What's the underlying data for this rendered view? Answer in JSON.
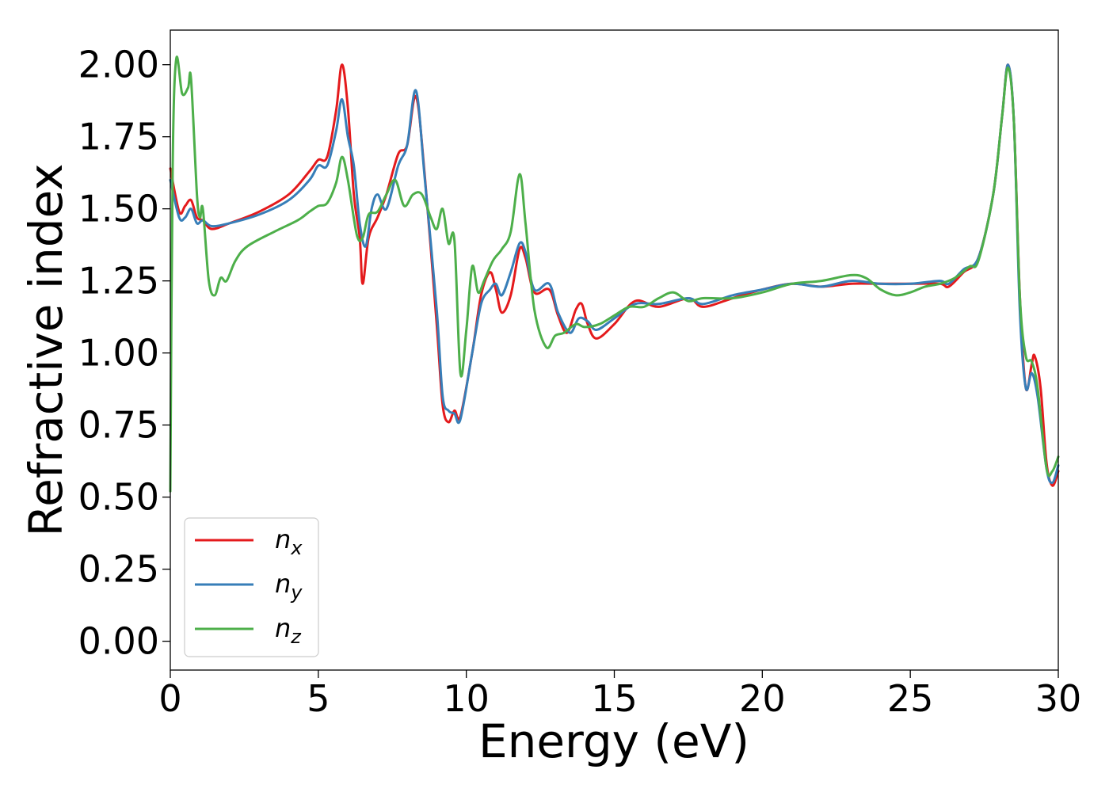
{
  "chart_data": {
    "type": "line",
    "title": "",
    "xlabel": "Energy (eV)",
    "ylabel": "Refractive index",
    "xlim": [
      0,
      30
    ],
    "ylim": [
      -0.1,
      2.12
    ],
    "xticks": [
      0,
      5,
      10,
      15,
      20,
      25,
      30
    ],
    "yticks": [
      0.0,
      0.25,
      0.5,
      0.75,
      1.0,
      1.25,
      1.5,
      1.75,
      2.0
    ],
    "xtick_labels": [
      "0",
      "5",
      "10",
      "15",
      "20",
      "25",
      "30"
    ],
    "ytick_labels": [
      "0.00",
      "0.25",
      "0.50",
      "0.75",
      "1.00",
      "1.25",
      "1.50",
      "1.75",
      "2.00"
    ],
    "grid": false,
    "legend_position": "lower-left",
    "series": [
      {
        "name": "n_x",
        "label_base": "n",
        "label_sub": "x",
        "color": "#e41a1c",
        "points": [
          [
            0,
            1.64
          ],
          [
            0.3,
            1.49
          ],
          [
            0.5,
            1.51
          ],
          [
            0.7,
            1.53
          ],
          [
            0.9,
            1.47
          ],
          [
            1.1,
            1.46
          ],
          [
            1.4,
            1.43
          ],
          [
            2,
            1.45
          ],
          [
            3,
            1.49
          ],
          [
            4,
            1.55
          ],
          [
            4.7,
            1.63
          ],
          [
            5.0,
            1.67
          ],
          [
            5.3,
            1.68
          ],
          [
            5.6,
            1.84
          ],
          [
            5.8,
            2.0
          ],
          [
            6.0,
            1.85
          ],
          [
            6.2,
            1.55
          ],
          [
            6.4,
            1.4
          ],
          [
            6.5,
            1.24
          ],
          [
            6.7,
            1.4
          ],
          [
            7.0,
            1.47
          ],
          [
            7.3,
            1.55
          ],
          [
            7.7,
            1.69
          ],
          [
            8.0,
            1.72
          ],
          [
            8.3,
            1.89
          ],
          [
            8.6,
            1.61
          ],
          [
            9.0,
            1.1
          ],
          [
            9.2,
            0.82
          ],
          [
            9.4,
            0.76
          ],
          [
            9.6,
            0.8
          ],
          [
            9.8,
            0.78
          ],
          [
            10.2,
            1.0
          ],
          [
            10.5,
            1.2
          ],
          [
            10.8,
            1.28
          ],
          [
            11.0,
            1.22
          ],
          [
            11.2,
            1.14
          ],
          [
            11.5,
            1.2
          ],
          [
            11.8,
            1.36
          ],
          [
            12.0,
            1.33
          ],
          [
            12.3,
            1.21
          ],
          [
            12.8,
            1.22
          ],
          [
            13.1,
            1.13
          ],
          [
            13.4,
            1.07
          ],
          [
            13.7,
            1.15
          ],
          [
            13.9,
            1.17
          ],
          [
            14.1,
            1.1
          ],
          [
            14.4,
            1.05
          ],
          [
            15,
            1.1
          ],
          [
            15.7,
            1.18
          ],
          [
            16.5,
            1.16
          ],
          [
            17.5,
            1.19
          ],
          [
            18,
            1.16
          ],
          [
            19,
            1.19
          ],
          [
            20,
            1.22
          ],
          [
            21,
            1.24
          ],
          [
            22,
            1.23
          ],
          [
            23,
            1.24
          ],
          [
            24,
            1.24
          ],
          [
            25,
            1.24
          ],
          [
            26,
            1.24
          ],
          [
            26.3,
            1.23
          ],
          [
            26.8,
            1.28
          ],
          [
            27.3,
            1.33
          ],
          [
            27.8,
            1.55
          ],
          [
            28.1,
            1.82
          ],
          [
            28.3,
            2.0
          ],
          [
            28.5,
            1.8
          ],
          [
            28.7,
            1.2
          ],
          [
            28.9,
            0.88
          ],
          [
            29.1,
            0.96
          ],
          [
            29.2,
            0.99
          ],
          [
            29.4,
            0.88
          ],
          [
            29.6,
            0.62
          ],
          [
            29.8,
            0.54
          ],
          [
            30,
            0.59
          ]
        ]
      },
      {
        "name": "n_y",
        "label_base": "n",
        "label_sub": "y",
        "color": "#377eb8",
        "points": [
          [
            0,
            1.6
          ],
          [
            0.3,
            1.47
          ],
          [
            0.5,
            1.47
          ],
          [
            0.7,
            1.5
          ],
          [
            0.9,
            1.45
          ],
          [
            1.1,
            1.46
          ],
          [
            1.4,
            1.44
          ],
          [
            2,
            1.45
          ],
          [
            3,
            1.48
          ],
          [
            4,
            1.53
          ],
          [
            4.7,
            1.6
          ],
          [
            5.0,
            1.65
          ],
          [
            5.3,
            1.65
          ],
          [
            5.6,
            1.77
          ],
          [
            5.8,
            1.88
          ],
          [
            6.0,
            1.75
          ],
          [
            6.2,
            1.65
          ],
          [
            6.4,
            1.45
          ],
          [
            6.6,
            1.37
          ],
          [
            6.8,
            1.5
          ],
          [
            7.0,
            1.55
          ],
          [
            7.3,
            1.5
          ],
          [
            7.7,
            1.65
          ],
          [
            8.0,
            1.72
          ],
          [
            8.3,
            1.91
          ],
          [
            8.6,
            1.6
          ],
          [
            9.0,
            1.15
          ],
          [
            9.2,
            0.85
          ],
          [
            9.4,
            0.8
          ],
          [
            9.6,
            0.79
          ],
          [
            9.8,
            0.77
          ],
          [
            10.2,
            1.0
          ],
          [
            10.5,
            1.17
          ],
          [
            10.8,
            1.22
          ],
          [
            11.0,
            1.24
          ],
          [
            11.2,
            1.2
          ],
          [
            11.5,
            1.28
          ],
          [
            11.8,
            1.38
          ],
          [
            12.0,
            1.35
          ],
          [
            12.3,
            1.22
          ],
          [
            12.8,
            1.24
          ],
          [
            13.1,
            1.14
          ],
          [
            13.5,
            1.07
          ],
          [
            13.8,
            1.12
          ],
          [
            14.1,
            1.11
          ],
          [
            14.4,
            1.08
          ],
          [
            15,
            1.12
          ],
          [
            15.7,
            1.17
          ],
          [
            16.5,
            1.17
          ],
          [
            17.5,
            1.19
          ],
          [
            18,
            1.17
          ],
          [
            19,
            1.2
          ],
          [
            20,
            1.22
          ],
          [
            21,
            1.24
          ],
          [
            22,
            1.23
          ],
          [
            23,
            1.25
          ],
          [
            24,
            1.24
          ],
          [
            25,
            1.24
          ],
          [
            26,
            1.25
          ],
          [
            26.3,
            1.24
          ],
          [
            26.8,
            1.29
          ],
          [
            27.3,
            1.33
          ],
          [
            27.8,
            1.55
          ],
          [
            28.1,
            1.82
          ],
          [
            28.3,
            2.0
          ],
          [
            28.5,
            1.8
          ],
          [
            28.7,
            1.15
          ],
          [
            28.9,
            0.88
          ],
          [
            29.1,
            0.93
          ],
          [
            29.3,
            0.85
          ],
          [
            29.6,
            0.6
          ],
          [
            29.8,
            0.55
          ],
          [
            30,
            0.61
          ]
        ]
      },
      {
        "name": "n_z",
        "label_base": "n",
        "label_sub": "z",
        "color": "#4daf4a",
        "points": [
          [
            0,
            0.52
          ],
          [
            0.08,
            1.65
          ],
          [
            0.2,
            2.02
          ],
          [
            0.4,
            1.9
          ],
          [
            0.6,
            1.92
          ],
          [
            0.7,
            1.95
          ],
          [
            0.9,
            1.55
          ],
          [
            1.0,
            1.47
          ],
          [
            1.1,
            1.5
          ],
          [
            1.3,
            1.25
          ],
          [
            1.5,
            1.2
          ],
          [
            1.7,
            1.26
          ],
          [
            1.9,
            1.25
          ],
          [
            2.2,
            1.32
          ],
          [
            2.6,
            1.37
          ],
          [
            3.5,
            1.42
          ],
          [
            4.3,
            1.46
          ],
          [
            4.7,
            1.49
          ],
          [
            5.0,
            1.51
          ],
          [
            5.3,
            1.52
          ],
          [
            5.6,
            1.59
          ],
          [
            5.8,
            1.68
          ],
          [
            6.0,
            1.6
          ],
          [
            6.3,
            1.41
          ],
          [
            6.5,
            1.4
          ],
          [
            6.7,
            1.48
          ],
          [
            7.0,
            1.49
          ],
          [
            7.3,
            1.55
          ],
          [
            7.6,
            1.6
          ],
          [
            7.9,
            1.51
          ],
          [
            8.2,
            1.55
          ],
          [
            8.5,
            1.55
          ],
          [
            8.8,
            1.47
          ],
          [
            9.0,
            1.43
          ],
          [
            9.2,
            1.5
          ],
          [
            9.4,
            1.38
          ],
          [
            9.6,
            1.39
          ],
          [
            9.8,
            0.93
          ],
          [
            10.0,
            1.08
          ],
          [
            10.2,
            1.3
          ],
          [
            10.4,
            1.21
          ],
          [
            10.6,
            1.25
          ],
          [
            10.9,
            1.32
          ],
          [
            11.2,
            1.36
          ],
          [
            11.5,
            1.42
          ],
          [
            11.8,
            1.62
          ],
          [
            12.0,
            1.45
          ],
          [
            12.3,
            1.15
          ],
          [
            12.7,
            1.02
          ],
          [
            13.0,
            1.06
          ],
          [
            13.3,
            1.07
          ],
          [
            13.7,
            1.1
          ],
          [
            14.0,
            1.09
          ],
          [
            14.5,
            1.1
          ],
          [
            15,
            1.13
          ],
          [
            15.5,
            1.16
          ],
          [
            16,
            1.16
          ],
          [
            16.5,
            1.19
          ],
          [
            17,
            1.21
          ],
          [
            17.5,
            1.18
          ],
          [
            18,
            1.19
          ],
          [
            19,
            1.19
          ],
          [
            20,
            1.21
          ],
          [
            21,
            1.24
          ],
          [
            22,
            1.25
          ],
          [
            23,
            1.27
          ],
          [
            23.5,
            1.26
          ],
          [
            24,
            1.22
          ],
          [
            24.5,
            1.2
          ],
          [
            25,
            1.21
          ],
          [
            25.5,
            1.23
          ],
          [
            26,
            1.24
          ],
          [
            26.5,
            1.26
          ],
          [
            27,
            1.3
          ],
          [
            27.3,
            1.32
          ],
          [
            27.8,
            1.55
          ],
          [
            28.1,
            1.82
          ],
          [
            28.3,
            1.99
          ],
          [
            28.5,
            1.8
          ],
          [
            28.7,
            1.2
          ],
          [
            28.9,
            0.99
          ],
          [
            29.1,
            0.97
          ],
          [
            29.3,
            0.88
          ],
          [
            29.6,
            0.6
          ],
          [
            29.8,
            0.59
          ],
          [
            30,
            0.64
          ]
        ]
      }
    ]
  }
}
